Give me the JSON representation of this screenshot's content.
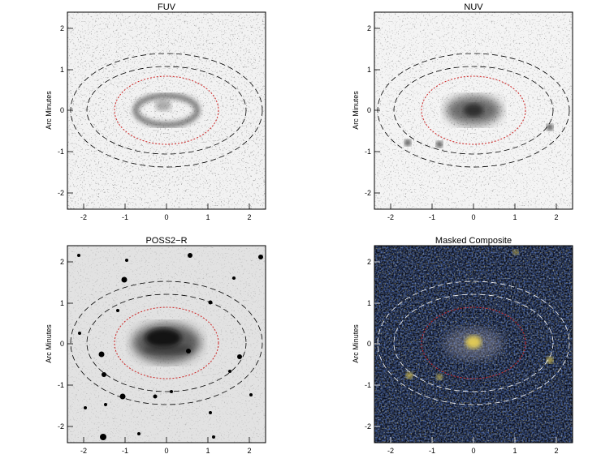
{
  "figure": {
    "panels": [
      {
        "id": "fuv",
        "title": "FUV",
        "ylabel": "Arc Minutes",
        "xticks": [
          "-2",
          "-1",
          "0",
          "1",
          "2"
        ],
        "yticks": [
          "2",
          "1",
          "0",
          "-1",
          "-2"
        ],
        "background": "#f2f2f2",
        "noise": "#8a8a8a",
        "galaxy": "#555555",
        "ellipse_color": "#000000",
        "inner_color": "#cc2222"
      },
      {
        "id": "nuv",
        "title": "NUV",
        "ylabel": "Arc Minutes",
        "xticks": [
          "-2",
          "-1",
          "0",
          "1",
          "2"
        ],
        "yticks": [
          "2",
          "1",
          "0",
          "-1",
          "-2"
        ],
        "background": "#f4f4f4",
        "noise": "#9a9a9a",
        "galaxy": "#3a3a3a",
        "ellipse_color": "#000000",
        "inner_color": "#cc2222"
      },
      {
        "id": "poss2r",
        "title": "POSS2−R",
        "ylabel": "Arc Minutes",
        "xticks": [
          "-2",
          "-1",
          "0",
          "1",
          "2"
        ],
        "yticks": [
          "2",
          "1",
          "0",
          "-1",
          "-2"
        ],
        "background": "#e2e2e2",
        "noise": "#c4c4c4",
        "galaxy": "#1e1e1e",
        "ellipse_color": "#000000",
        "inner_color": "#cc2222"
      },
      {
        "id": "composite",
        "title": "Masked Composite",
        "ylabel": "Arc Minutes",
        "xticks": [
          "-2",
          "-1",
          "0",
          "1",
          "2"
        ],
        "yticks": [
          "2",
          "1",
          "0",
          "-1",
          "-2"
        ],
        "background": "#0a0f1e",
        "noise": "#1e3a8c",
        "galaxy": "#c9b860",
        "ellipse_color": "#ffffff",
        "inner_color": "#cc2222"
      }
    ]
  }
}
